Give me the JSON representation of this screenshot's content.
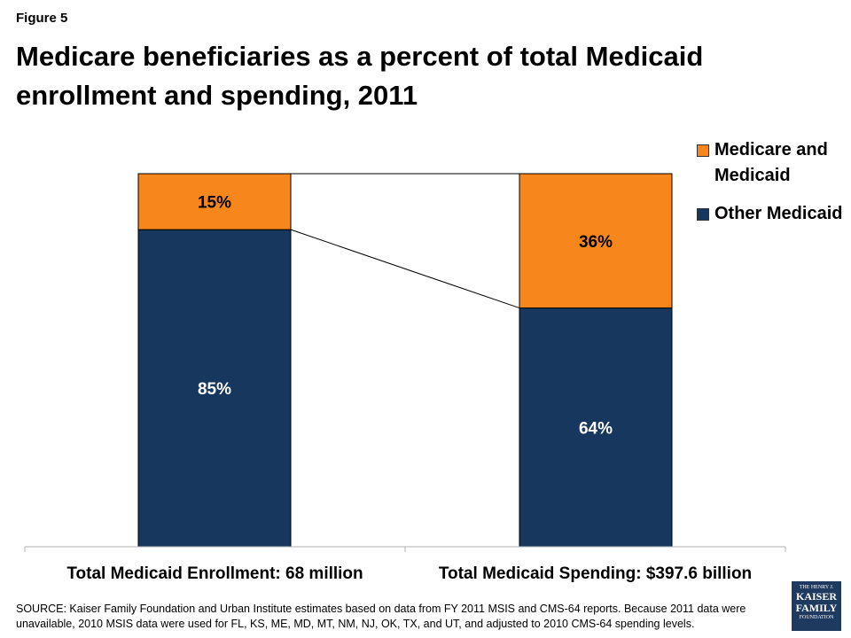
{
  "figure_label": "Figure 5",
  "title": "Medicare beneficiaries as a percent of total Medicaid enrollment and spending, 2011",
  "source_text": "SOURCE: Kaiser Family Foundation and Urban Institute estimates based on data from FY 2011 MSIS and CMS-64 reports. Because 2011 data were unavailable, 2010 MSIS data were used for FL, KS, ME, MD, MT, NM, NJ, OK, TX, and UT, and adjusted to 2010 CMS-64 spending levels.",
  "logo": {
    "line1": "THE HENRY J.",
    "line2": "KAISER",
    "line3": "FAMILY",
    "line4": "FOUNDATION"
  },
  "chart_data": {
    "type": "bar",
    "stacked": true,
    "percent_stacked": true,
    "categories": [
      "Total Medicaid Enrollment:  68 million",
      "Total Medicaid Spending:  $397.6 billion"
    ],
    "series": [
      {
        "name": "Other Medicaid",
        "values": [
          85,
          64
        ],
        "labels": [
          "85%",
          "64%"
        ],
        "color": "#17375e"
      },
      {
        "name": "Medicare and Medicaid",
        "values": [
          15,
          36
        ],
        "labels": [
          "15%",
          "36%"
        ],
        "color": "#f7861c"
      }
    ],
    "ylim": [
      0,
      100
    ],
    "legend_placement": "top-right",
    "series_lines": true,
    "grid": false
  }
}
